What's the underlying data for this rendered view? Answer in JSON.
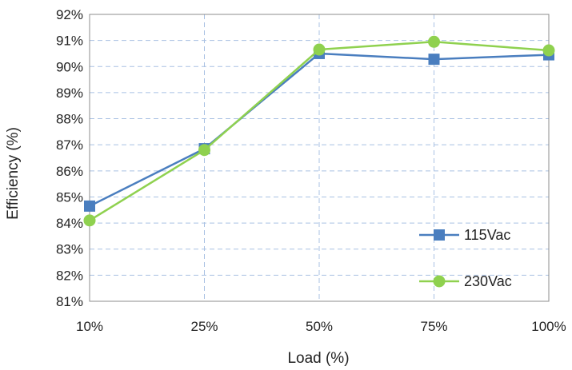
{
  "chart_data": {
    "type": "line",
    "title": "",
    "xlabel": "Load (%)",
    "ylabel": "Efficiency (%)",
    "categories": [
      "10%",
      "25%",
      "50%",
      "75%",
      "100%"
    ],
    "ylim": [
      81,
      92
    ],
    "yticks": [
      "81%",
      "82%",
      "83%",
      "84%",
      "85%",
      "86%",
      "87%",
      "88%",
      "89%",
      "90%",
      "91%",
      "92%"
    ],
    "grid": true,
    "legend_position": "bottom-right",
    "series": [
      {
        "name": "115Vac",
        "values": [
          84.65,
          86.85,
          90.5,
          90.28,
          90.45
        ],
        "color": "#4a7ebf",
        "marker": "square"
      },
      {
        "name": "230Vac",
        "values": [
          84.1,
          86.8,
          90.65,
          90.95,
          90.62
        ],
        "color": "#8fd14f",
        "marker": "circle"
      }
    ]
  }
}
